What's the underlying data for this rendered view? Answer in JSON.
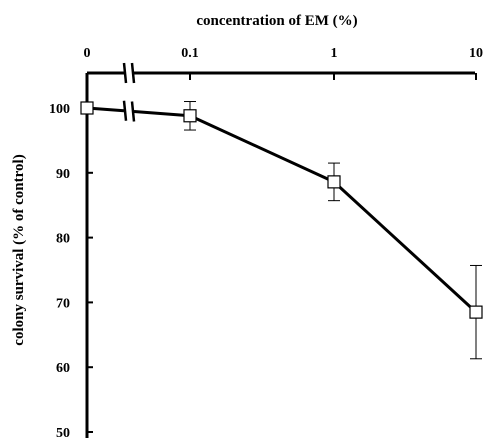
{
  "chart_data": {
    "type": "line",
    "xlabel": "concentration of EM (%)",
    "ylabel": "colony survival (% of control)",
    "x_scale": "log, with axis break between 0 and 0.1",
    "x_axis_position": "top",
    "x": [
      0,
      0.1,
      1,
      10
    ],
    "x_tick_labels": [
      "0",
      "0.1",
      "1",
      "10"
    ],
    "y_ticks": [
      50,
      60,
      70,
      80,
      90,
      100
    ],
    "ylim": [
      50,
      100
    ],
    "grid": false,
    "legend": "none",
    "series": [
      {
        "values": [
          100,
          98.8,
          88.6,
          68.5
        ],
        "error": [
          0,
          2.2,
          2.9,
          7.2
        ],
        "marker": "open-square",
        "color": "#000000"
      }
    ]
  }
}
